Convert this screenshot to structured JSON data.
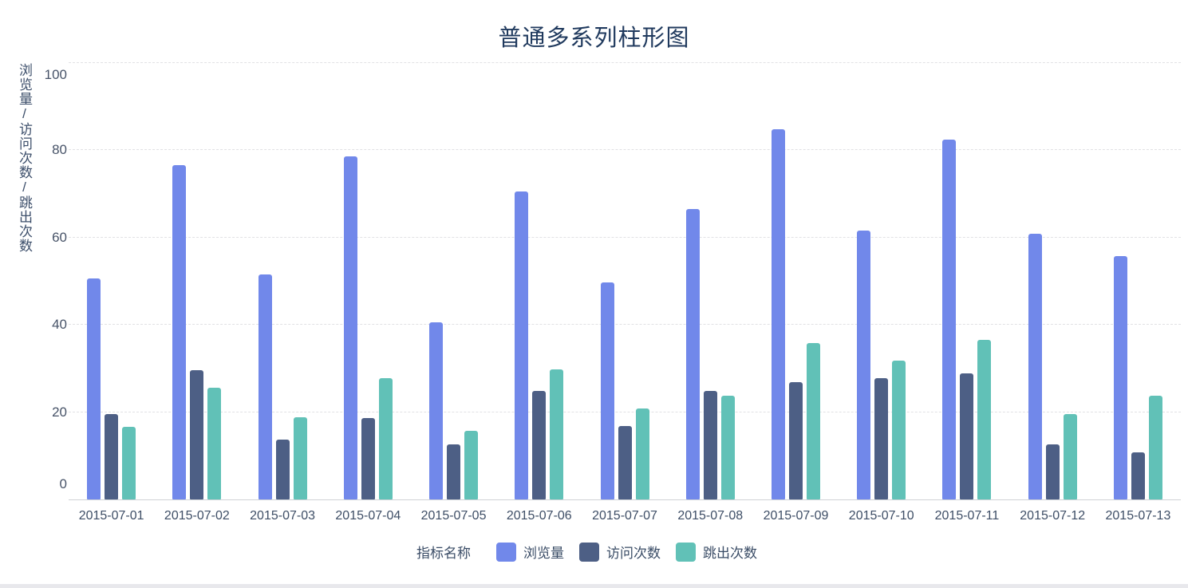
{
  "title": "普通多系列柱形图",
  "y_axis_name": "浏览量/访问次数/跳出次数",
  "legend": {
    "title": "指标名称",
    "items": [
      {
        "id": "pageviews",
        "label": "浏览量",
        "color": "#7188EA"
      },
      {
        "id": "visits",
        "label": "访问次数",
        "color": "#4D5F85"
      },
      {
        "id": "bounces",
        "label": "跳出次数",
        "color": "#61C1B7"
      }
    ]
  },
  "colors": {
    "title_text": "#203A5E",
    "axis_text": "#475368",
    "gridline": "#E1E1E4",
    "axis_line": "#CFD2D6",
    "series_blue": "#7188EA",
    "series_dark": "#4D5F85",
    "series_teal": "#61C1B7"
  },
  "chart_data": {
    "type": "bar",
    "title": "普通多系列柱形图",
    "ylabel": "浏览量/访问次数/跳出次数",
    "xlabel": "",
    "categories": [
      "2015-07-01",
      "2015-07-02",
      "2015-07-03",
      "2015-07-04",
      "2015-07-05",
      "2015-07-06",
      "2015-07-07",
      "2015-07-08",
      "2015-07-09",
      "2015-07-10",
      "2015-07-11",
      "2015-07-12",
      "2015-07-13"
    ],
    "series": [
      {
        "id": "pageviews",
        "name": "浏览量",
        "color": "#7188EA",
        "values": [
          50.6,
          76.6,
          51.6,
          78.7,
          40.6,
          70.6,
          49.7,
          66.6,
          84.8,
          61.6,
          82.5,
          60.8,
          55.7
        ]
      },
      {
        "id": "visits",
        "name": "访问次数",
        "color": "#4D5F85",
        "values": [
          19.6,
          29.6,
          13.8,
          18.7,
          12.7,
          24.8,
          16.9,
          24.9,
          26.9,
          27.7,
          28.9,
          12.7,
          10.7
        ]
      },
      {
        "id": "bounces",
        "name": "跳出次数",
        "color": "#61C1B7",
        "values": [
          16.6,
          25.6,
          18.8,
          27.7,
          15.8,
          29.8,
          20.9,
          23.7,
          35.8,
          31.8,
          36.6,
          19.6,
          23.7
        ]
      }
    ],
    "yticks": [
      0,
      20,
      40,
      60,
      80,
      100
    ],
    "ylim": [
      0,
      100
    ],
    "grid": true,
    "grid_style": "dashed",
    "legend_position": "bottom"
  }
}
